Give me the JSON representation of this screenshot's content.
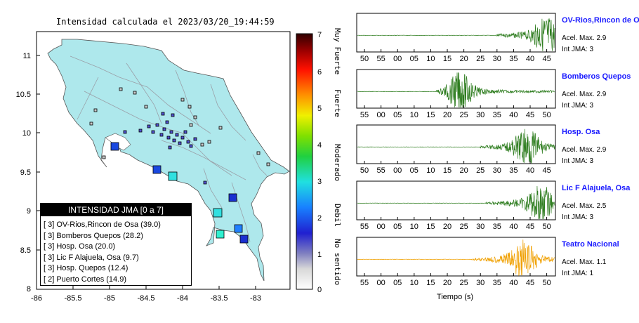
{
  "map": {
    "title": "Intensidad calculada el 2023/03/20_19:44:59",
    "x_ticks": [
      "-86",
      "-85.5",
      "-85",
      "-84.5",
      "-84",
      "-83.5",
      "-83"
    ],
    "y_ticks": [
      "11",
      "10.5",
      "10",
      "9.5",
      "9",
      "8.5",
      "8"
    ],
    "colorbar_ticks": [
      "7",
      "6",
      "5",
      "4",
      "3",
      "2",
      "1",
      "0"
    ],
    "colorbar_labels": [
      "Muy Fuerte",
      "Fuerte",
      "Moderado",
      "Debil",
      "No sentido"
    ],
    "colors": {
      "land": "#aee8ec",
      "sea": "#ffffff",
      "rivers": "#9aa0a8"
    }
  },
  "legend": {
    "title": "INTENSIDAD JMA [0 a 7]",
    "items": [
      {
        "text": "[ 3]  OV-Rios,Rincon de Osa (39.0)"
      },
      {
        "text": "[ 3]  Bomberos Quepos (28.2)"
      },
      {
        "text": "[ 3]  Hosp. Osa (20.0)"
      },
      {
        "text": "[ 3]  Lic F Alajuela, Osa (9.7)"
      },
      {
        "text": "[ 3]  Hosp. Quepos (12.4)"
      },
      {
        "text": "[ 2]  Puerto Cortes (14.9)"
      }
    ]
  },
  "traces": {
    "x_label": "Tiempo (s)",
    "stations": [
      {
        "name": "OV-Rios,Rincon de Osa",
        "accel": "Acel. Max. 2.9",
        "jma": "Int JMA: 3",
        "color": "#2e7d1f",
        "ticks": [
          "50",
          "55",
          "00",
          "05",
          "10",
          "15",
          "20",
          "25",
          "30",
          "35",
          "40",
          "45"
        ],
        "onset": 0.7,
        "peak": 0.96
      },
      {
        "name": "Bomberos Quepos",
        "accel": "Acel. Max. 2.9",
        "jma": "Int JMA: 3",
        "color": "#2e7d1f",
        "ticks": [
          "55",
          "00",
          "05",
          "10",
          "15",
          "20",
          "25",
          "30",
          "35",
          "40",
          "45",
          "50"
        ],
        "onset": 0.4,
        "peak": 0.52
      },
      {
        "name": "Hosp. Osa",
        "accel": "Acel. Max. 2.9",
        "jma": "Int JMA: 3",
        "color": "#2e7d1f",
        "ticks": [
          "50",
          "55",
          "00",
          "05",
          "10",
          "15",
          "20",
          "25",
          "30",
          "35",
          "40",
          "45"
        ],
        "onset": 0.62,
        "peak": 0.86
      },
      {
        "name": "Lic F Alajuela, Osa",
        "accel": "Acel. Max. 2.5",
        "jma": "Int JMA: 3",
        "color": "#2e7d1f",
        "ticks": [
          "55",
          "00",
          "05",
          "10",
          "15",
          "20",
          "25",
          "30",
          "35",
          "40",
          "45",
          "50"
        ],
        "onset": 0.65,
        "peak": 0.93
      },
      {
        "name": "Teatro Nacional",
        "accel": "Acel. Max. 1.1",
        "jma": "Int JMA: 1",
        "color": "#f0a000",
        "ticks": [
          "55",
          "00",
          "05",
          "10",
          "15",
          "20",
          "25",
          "30",
          "35",
          "40",
          "45",
          "50"
        ],
        "onset": 0.58,
        "peak": 0.84
      }
    ]
  }
}
